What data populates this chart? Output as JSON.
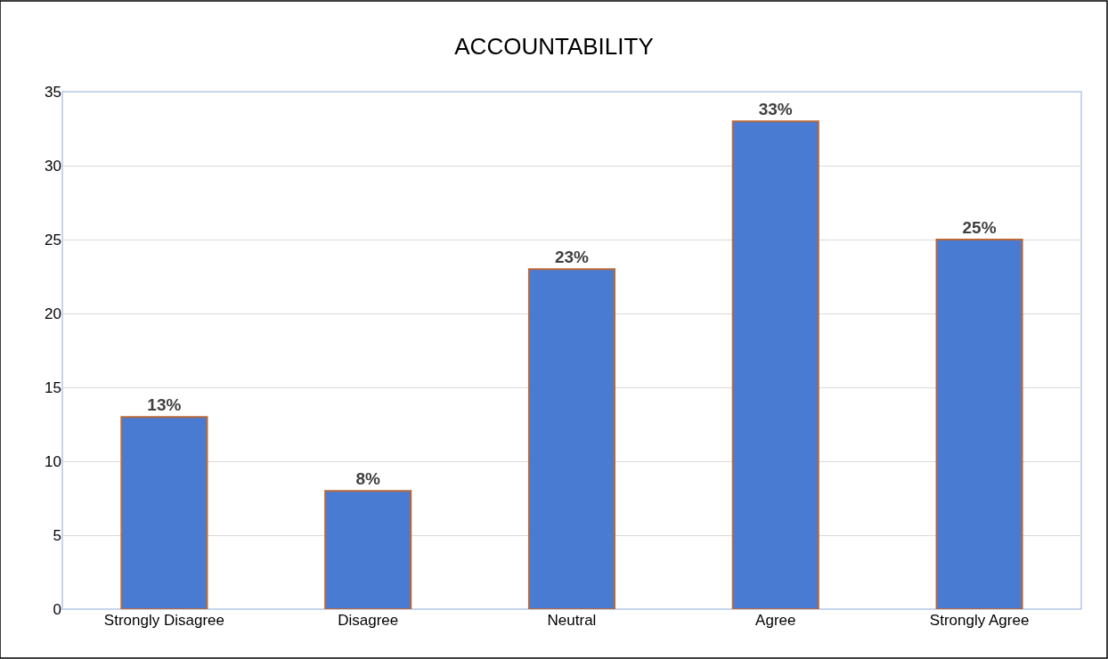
{
  "chart_data": {
    "type": "bar",
    "title": "ACCOUNTABILITY",
    "categories": [
      "Strongly Disagree",
      "Disagree",
      "Neutral",
      "Agree",
      "Strongly Agree"
    ],
    "values": [
      13,
      8,
      23,
      33,
      25
    ],
    "value_labels": [
      "13%",
      "8%",
      "23%",
      "33%",
      "25%"
    ],
    "color": "#4a7bd3",
    "ylim": [
      0,
      35
    ],
    "yticks": [
      0,
      5,
      10,
      15,
      20,
      25,
      30,
      35
    ],
    "grid": "y"
  }
}
